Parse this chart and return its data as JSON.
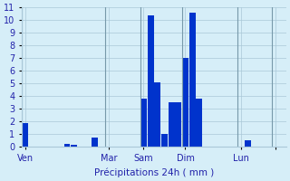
{
  "bar_values": [
    1.9,
    0,
    0,
    0,
    0,
    0,
    0.2,
    0.15,
    0,
    0,
    0.7,
    0,
    0,
    0,
    0,
    0,
    0,
    3.8,
    10.4,
    5.1,
    1.0,
    3.5,
    3.5,
    7.0,
    10.6,
    3.8,
    0,
    0,
    0,
    0,
    0,
    0,
    0.5,
    0,
    0,
    0,
    0,
    0
  ],
  "day_tick_positions": [
    0,
    12,
    17,
    23,
    31,
    36
  ],
  "day_tick_names": [
    "Ven",
    "Mar",
    "Sam",
    "Dim",
    "Lun",
    ""
  ],
  "xlabel": "Précipitations 24h ( mm )",
  "ylim": [
    0,
    11
  ],
  "yticks": [
    0,
    1,
    2,
    3,
    4,
    5,
    6,
    7,
    8,
    9,
    10,
    11
  ],
  "bar_color": "#0033cc",
  "background_color": "#d6eef8",
  "grid_color": "#aac8d8",
  "text_color": "#2222aa",
  "tick_color": "#2222aa",
  "vline_positions": [
    0,
    12,
    17,
    23,
    31,
    36
  ]
}
